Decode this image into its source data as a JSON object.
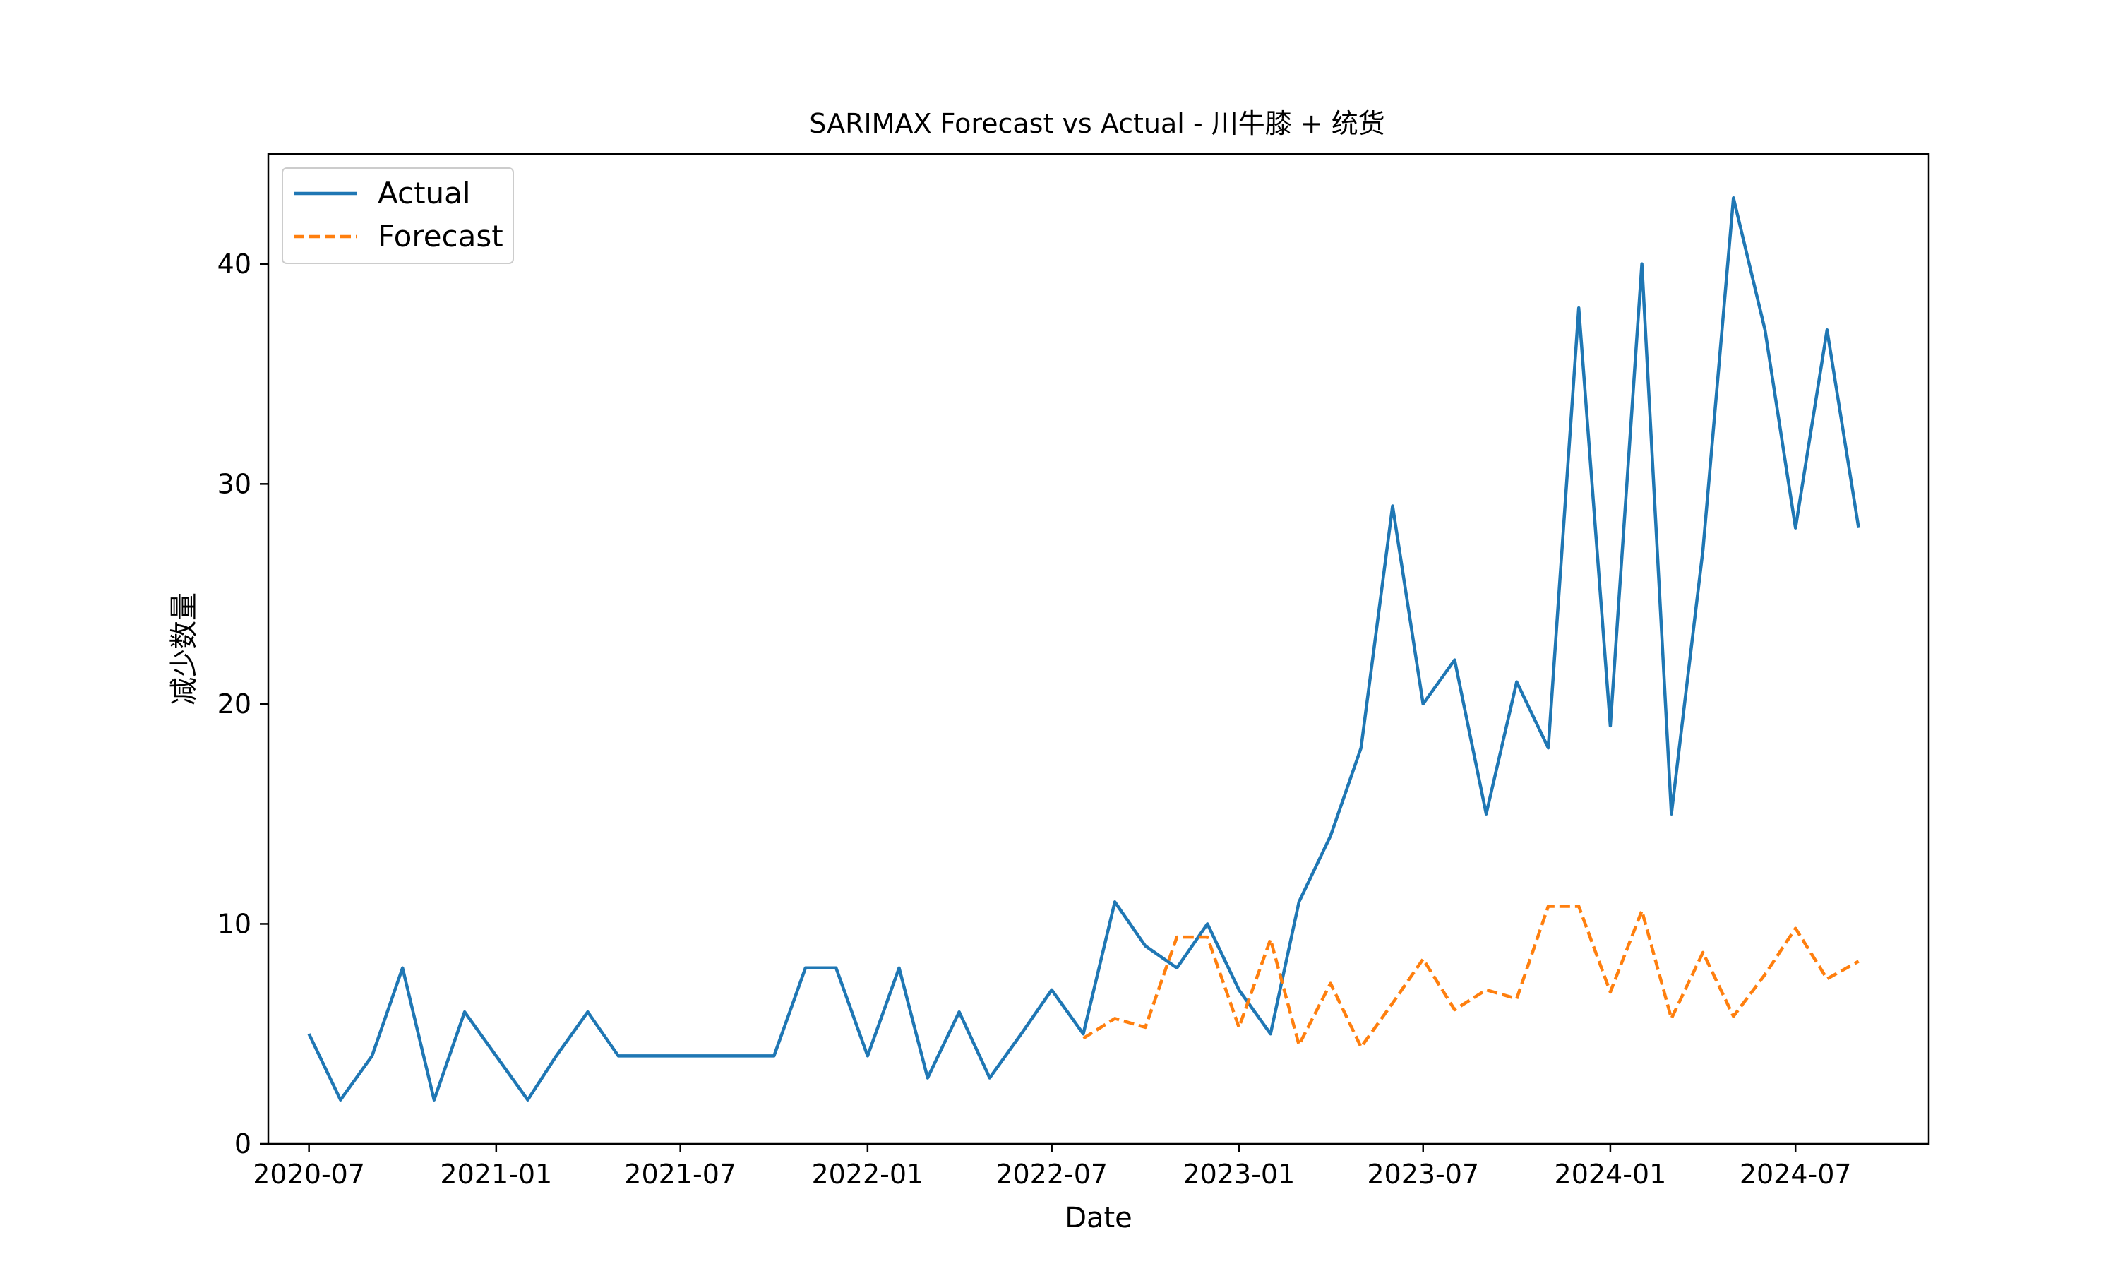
{
  "chart_data": {
    "type": "line",
    "title": "SARIMAX Forecast vs Actual - 川牛膝 + 统货",
    "xlabel": "Date",
    "ylabel": "减少数量",
    "xlim": [
      "2020-05-22",
      "2024-11-09"
    ],
    "ylim": [
      0,
      45
    ],
    "x_ticks": [
      "2020-07",
      "2021-01",
      "2021-07",
      "2022-01",
      "2022-07",
      "2023-01",
      "2023-07",
      "2024-01",
      "2024-07"
    ],
    "y_ticks": [
      0,
      10,
      20,
      30,
      40
    ],
    "grid": false,
    "legend_position": "upper-left",
    "series": [
      {
        "name": "Actual",
        "color": "#1f77b4",
        "style": "solid",
        "points": [
          [
            "2020-07-01",
            5
          ],
          [
            "2020-08-01",
            2
          ],
          [
            "2020-09-01",
            4
          ],
          [
            "2020-10-01",
            8
          ],
          [
            "2020-11-01",
            2
          ],
          [
            "2020-12-01",
            6
          ],
          [
            "2021-01-01",
            4
          ],
          [
            "2021-02-01",
            2
          ],
          [
            "2021-03-01",
            4
          ],
          [
            "2021-04-01",
            6
          ],
          [
            "2021-05-01",
            4
          ],
          [
            "2021-06-01",
            4
          ],
          [
            "2021-07-01",
            4
          ],
          [
            "2021-08-01",
            4
          ],
          [
            "2021-09-01",
            4
          ],
          [
            "2021-10-01",
            4
          ],
          [
            "2021-11-01",
            8
          ],
          [
            "2021-12-01",
            8
          ],
          [
            "2022-01-01",
            4
          ],
          [
            "2022-02-01",
            8
          ],
          [
            "2022-03-01",
            3
          ],
          [
            "2022-04-01",
            6
          ],
          [
            "2022-05-01",
            3
          ],
          [
            "2022-06-01",
            5
          ],
          [
            "2022-07-01",
            7
          ],
          [
            "2022-08-01",
            5
          ],
          [
            "2022-09-01",
            11
          ],
          [
            "2022-10-01",
            9
          ],
          [
            "2022-11-01",
            8
          ],
          [
            "2022-12-01",
            10
          ],
          [
            "2023-01-01",
            7
          ],
          [
            "2023-02-01",
            5
          ],
          [
            "2023-03-01",
            11
          ],
          [
            "2023-04-01",
            14
          ],
          [
            "2023-05-01",
            18
          ],
          [
            "2023-06-01",
            29
          ],
          [
            "2023-07-01",
            20
          ],
          [
            "2023-08-01",
            22
          ],
          [
            "2023-09-01",
            15
          ],
          [
            "2023-10-01",
            21
          ],
          [
            "2023-11-01",
            18
          ],
          [
            "2023-12-01",
            38
          ],
          [
            "2024-01-01",
            19
          ],
          [
            "2024-02-01",
            40
          ],
          [
            "2024-03-01",
            15
          ],
          [
            "2024-04-01",
            27
          ],
          [
            "2024-05-01",
            43
          ],
          [
            "2024-06-01",
            37
          ],
          [
            "2024-07-01",
            28
          ],
          [
            "2024-08-01",
            37
          ],
          [
            "2024-09-01",
            28
          ]
        ]
      },
      {
        "name": "Forecast",
        "color": "#ff7f0e",
        "style": "dashed",
        "points": [
          [
            "2022-08-01",
            4.8
          ],
          [
            "2022-09-01",
            5.7
          ],
          [
            "2022-10-01",
            5.3
          ],
          [
            "2022-11-01",
            9.4
          ],
          [
            "2022-12-01",
            9.4
          ],
          [
            "2023-01-01",
            5.3
          ],
          [
            "2023-02-01",
            9.3
          ],
          [
            "2023-03-01",
            4.5
          ],
          [
            "2023-04-01",
            7.3
          ],
          [
            "2023-05-01",
            4.4
          ],
          [
            "2023-06-01",
            6.4
          ],
          [
            "2023-07-01",
            8.4
          ],
          [
            "2023-08-01",
            6.1
          ],
          [
            "2023-09-01",
            7.0
          ],
          [
            "2023-10-01",
            6.6
          ],
          [
            "2023-11-01",
            10.8
          ],
          [
            "2023-12-01",
            10.8
          ],
          [
            "2024-01-01",
            6.9
          ],
          [
            "2024-02-01",
            10.6
          ],
          [
            "2024-03-01",
            5.7
          ],
          [
            "2024-04-01",
            8.7
          ],
          [
            "2024-05-01",
            5.8
          ],
          [
            "2024-06-01",
            7.7
          ],
          [
            "2024-07-01",
            9.8
          ],
          [
            "2024-08-01",
            7.5
          ],
          [
            "2024-09-01",
            8.3
          ]
        ]
      }
    ]
  }
}
